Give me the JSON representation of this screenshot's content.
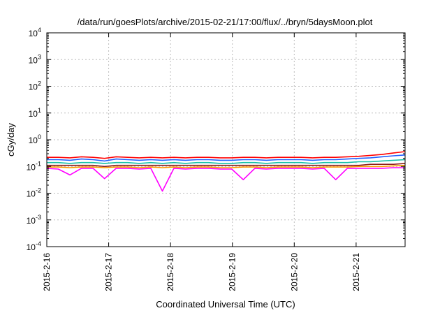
{
  "chart_data": {
    "type": "line",
    "title": "/data/run/goesPlots/archive/2015-02-21/17:00/flux/../bryn/5daysMoon.plot",
    "xlabel": "Coordinated Universal Time (UTC)",
    "ylabel": "cGy/day",
    "yscale": "log",
    "ylim": [
      0.0001,
      10000
    ],
    "y_tick_values": [
      0.0001,
      0.001,
      0.01,
      0.1,
      1,
      10,
      100,
      1000,
      10000
    ],
    "y_tick_labels": [
      {
        "base": "10",
        "exp": "-4"
      },
      {
        "base": "10",
        "exp": "-3"
      },
      {
        "base": "10",
        "exp": "-2"
      },
      {
        "base": "10",
        "exp": "-1"
      },
      {
        "base": "10",
        "exp": "0"
      },
      {
        "base": "10",
        "exp": "1"
      },
      {
        "base": "10",
        "exp": "2"
      },
      {
        "base": "10",
        "exp": "3"
      },
      {
        "base": "10",
        "exp": "4"
      }
    ],
    "xlim": [
      "2015-02-16",
      "2015-02-21T19:00"
    ],
    "x_ticks": [
      "2015-2-16",
      "2015-2-17",
      "2015-2-18",
      "2015-2-19",
      "2015-2-20",
      "2015-2-21"
    ],
    "grid": true,
    "legend": "none",
    "series": [
      {
        "color": "#ff0000",
        "values": [
          0.22,
          0.22,
          0.21,
          0.23,
          0.22,
          0.2,
          0.23,
          0.22,
          0.21,
          0.22,
          0.21,
          0.22,
          0.21,
          0.22,
          0.22,
          0.21,
          0.21,
          0.22,
          0.22,
          0.21,
          0.22,
          0.22,
          0.22,
          0.21,
          0.22,
          0.22,
          0.23,
          0.24,
          0.26,
          0.28,
          0.32,
          0.36
        ]
      },
      {
        "color": "#1f5fff",
        "values": [
          0.18,
          0.18,
          0.17,
          0.19,
          0.18,
          0.16,
          0.19,
          0.18,
          0.17,
          0.18,
          0.17,
          0.18,
          0.17,
          0.18,
          0.18,
          0.17,
          0.17,
          0.18,
          0.18,
          0.17,
          0.18,
          0.18,
          0.18,
          0.17,
          0.18,
          0.18,
          0.19,
          0.2,
          0.21,
          0.23,
          0.25,
          0.27
        ]
      },
      {
        "color": "#19c0a8",
        "values": [
          0.14,
          0.14,
          0.13,
          0.14,
          0.14,
          0.13,
          0.14,
          0.14,
          0.13,
          0.14,
          0.13,
          0.14,
          0.13,
          0.14,
          0.14,
          0.13,
          0.13,
          0.14,
          0.14,
          0.13,
          0.14,
          0.14,
          0.14,
          0.13,
          0.14,
          0.14,
          0.14,
          0.15,
          0.15,
          0.16,
          0.17,
          0.18
        ]
      },
      {
        "color": "#8b1a1a",
        "values": [
          0.11,
          0.11,
          0.11,
          0.11,
          0.11,
          0.1,
          0.11,
          0.11,
          0.11,
          0.11,
          0.11,
          0.11,
          0.11,
          0.11,
          0.11,
          0.11,
          0.11,
          0.11,
          0.11,
          0.11,
          0.11,
          0.11,
          0.11,
          0.11,
          0.11,
          0.11,
          0.11,
          0.11,
          0.12,
          0.12,
          0.12,
          0.13
        ]
      },
      {
        "color": "#ff9900",
        "values": [
          0.095,
          0.095,
          0.09,
          0.095,
          0.095,
          0.09,
          0.095,
          0.095,
          0.09,
          0.095,
          0.09,
          0.095,
          0.09,
          0.095,
          0.095,
          0.09,
          0.09,
          0.095,
          0.095,
          0.09,
          0.095,
          0.095,
          0.095,
          0.09,
          0.095,
          0.095,
          0.095,
          0.1,
          0.1,
          0.1,
          0.105,
          0.11
        ]
      },
      {
        "color": "#ff00ff",
        "values": [
          0.085,
          0.08,
          0.048,
          0.085,
          0.085,
          0.035,
          0.085,
          0.085,
          0.08,
          0.085,
          0.012,
          0.085,
          0.08,
          0.085,
          0.085,
          0.08,
          0.08,
          0.032,
          0.085,
          0.08,
          0.085,
          0.085,
          0.085,
          0.08,
          0.085,
          0.032,
          0.085,
          0.085,
          0.085,
          0.085,
          0.09,
          0.09
        ]
      }
    ]
  }
}
